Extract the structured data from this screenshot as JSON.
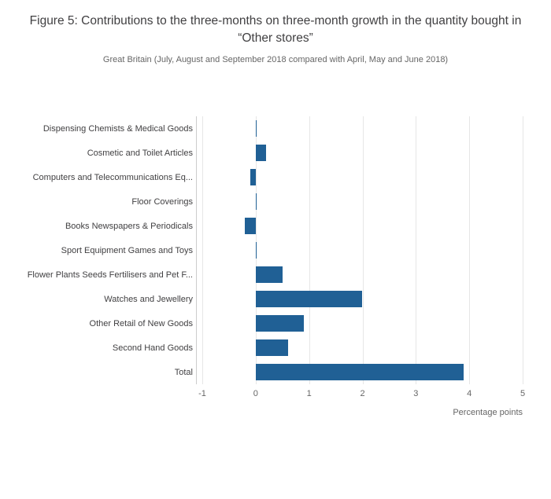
{
  "chart_data": {
    "type": "bar",
    "orientation": "horizontal",
    "title": "Figure 5: Contributions to the three-months on three-month growth in the quantity bought in “Other stores”",
    "subtitle": "Great Britain (July, August and September 2018 compared with April, May and June 2018)",
    "xlabel": "Percentage points",
    "categories": [
      "Dispensing Chemists & Medical Goods",
      "Cosmetic and Toilet Articles",
      "Computers and Telecommunications Eq...",
      "Floor Coverings",
      "Books Newspapers & Periodicals",
      "Sport Equipment Games and Toys",
      "Flower Plants Seeds Fertilisers and Pet F...",
      "Watches and Jewellery",
      "Other Retail of New Goods",
      "Second Hand Goods",
      "Total"
    ],
    "values": [
      0,
      0.2,
      -0.1,
      0,
      -0.2,
      0,
      0.5,
      2,
      0.9,
      0.6,
      3.9
    ],
    "xlim": [
      -1,
      5
    ],
    "ticks": [
      -1,
      0,
      1,
      2,
      3,
      4,
      5
    ],
    "bar_color": "#206095",
    "grid": true,
    "legend_position": "none"
  }
}
